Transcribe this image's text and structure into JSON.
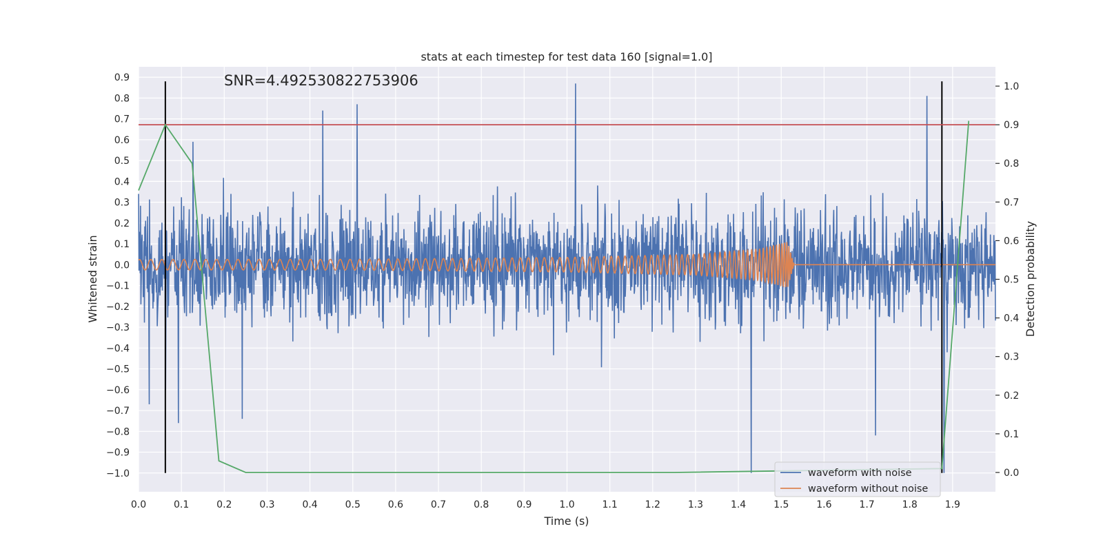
{
  "chart_data": {
    "type": "line",
    "title": "stats at each timestep for test data 160 [signal=1.0]",
    "xlabel": "Time (s)",
    "ylabel": "Whitened strain",
    "ylabel_right": "Detection probability",
    "xlim": [
      0.0,
      2.0
    ],
    "ylim": [
      -1.09,
      0.95
    ],
    "ylim_right": [
      -0.05,
      1.05
    ],
    "x_ticks": [
      "0.0",
      "0.1",
      "0.2",
      "0.3",
      "0.4",
      "0.5",
      "0.6",
      "0.7",
      "0.8",
      "0.9",
      "1.0",
      "1.1",
      "1.2",
      "1.3",
      "1.4",
      "1.5",
      "1.6",
      "1.7",
      "1.8",
      "1.9"
    ],
    "y_ticks": [
      "0.9",
      "0.8",
      "0.7",
      "0.6",
      "0.5",
      "0.4",
      "0.3",
      "0.2",
      "0.1",
      "0.0",
      "−0.1",
      "−0.2",
      "−0.3",
      "−0.4",
      "−0.5",
      "−0.6",
      "−0.7",
      "−0.8",
      "−0.9",
      "−1.0"
    ],
    "y_ticks_right": [
      "1.0",
      "0.9",
      "0.8",
      "0.7",
      "0.6",
      "0.5",
      "0.4",
      "0.3",
      "0.2",
      "0.1",
      "0.0"
    ],
    "annotation": "SNR=4.492530822753906",
    "grid": true,
    "legend_position": "lower-right",
    "series": [
      {
        "name": "waveform with noise",
        "color": "#4c72b0",
        "kind": "noise",
        "amplitude_range": [
          -1.0,
          0.87
        ],
        "notable_points": [
          [
            0.0,
            0.34
          ],
          [
            0.025,
            -0.67
          ],
          [
            0.063,
            -0.6
          ],
          [
            0.093,
            -0.76
          ],
          [
            0.127,
            0.59
          ],
          [
            0.242,
            -0.74
          ],
          [
            0.43,
            0.74
          ],
          [
            0.51,
            0.77
          ],
          [
            1.02,
            0.87
          ],
          [
            1.43,
            -1.0
          ],
          [
            1.72,
            -0.82
          ],
          [
            1.84,
            0.81
          ],
          [
            1.88,
            -1.0
          ]
        ]
      },
      {
        "name": "waveform without noise",
        "color": "#dd8452",
        "kind": "chirp",
        "envelope": [
          [
            0.0,
            0.025
          ],
          [
            0.5,
            0.026
          ],
          [
            1.0,
            0.035
          ],
          [
            1.3,
            0.05
          ],
          [
            1.45,
            0.075
          ],
          [
            1.515,
            0.11
          ],
          [
            1.53,
            0.0
          ],
          [
            2.0,
            0.0
          ]
        ],
        "merger_time": 1.52
      },
      {
        "name": "detection probability",
        "color": "#55a868",
        "axis": "right",
        "x": [
          0.0,
          0.0625,
          0.125,
          0.1875,
          0.25,
          0.625,
          1.25,
          1.875,
          1.9375
        ],
        "y": [
          0.73,
          0.9,
          0.8,
          0.03,
          0.0,
          0.0,
          0.0,
          0.01,
          0.91
        ]
      }
    ],
    "threshold": {
      "axis": "right",
      "value": 0.9,
      "color": "#c44e52"
    },
    "vlines": [
      {
        "x": 0.0625,
        "from": -1.0,
        "to": 0.88,
        "color": "#000000"
      },
      {
        "x": 1.875,
        "from": -1.0,
        "to": 0.88,
        "color": "#000000"
      }
    ]
  }
}
